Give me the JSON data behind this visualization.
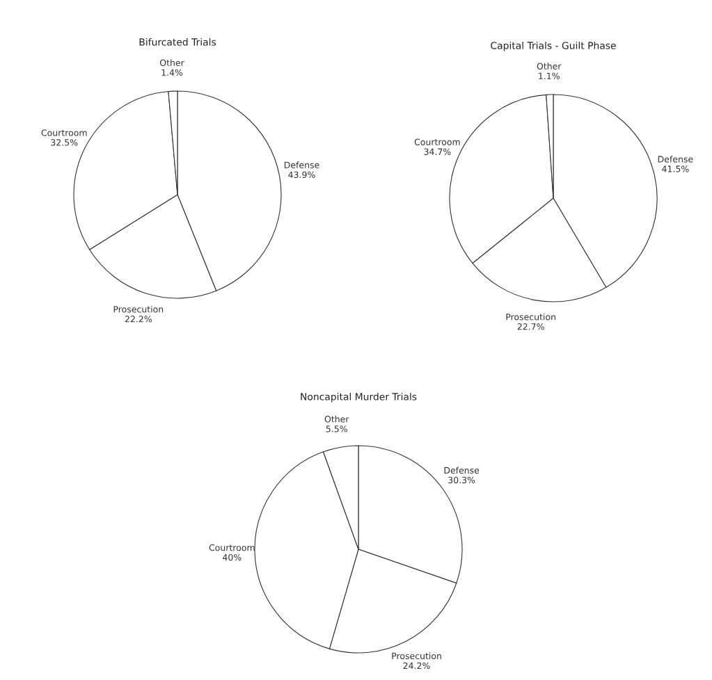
{
  "chart_data": [
    {
      "type": "pie",
      "title": "Bifurcated Trials",
      "categories": [
        "Defense",
        "Prosecution",
        "Courtroom",
        "Other"
      ],
      "values": [
        43.9,
        22.2,
        32.5,
        1.4
      ],
      "value_labels": [
        "43.9%",
        "22.2%",
        "32.5%",
        "1.4%"
      ],
      "colors": [
        "#ffffff",
        "#ffffff",
        "#ffffff",
        "#ffffff"
      ]
    },
    {
      "type": "pie",
      "title": "Capital Trials - Guilt Phase",
      "categories": [
        "Defense",
        "Prosecution",
        "Courtroom",
        "Other"
      ],
      "values": [
        41.5,
        22.7,
        34.7,
        1.1
      ],
      "value_labels": [
        "41.5%",
        "22.7%",
        "34.7%",
        "1.1%"
      ],
      "colors": [
        "#ffffff",
        "#ffffff",
        "#ffffff",
        "#ffffff"
      ]
    },
    {
      "type": "pie",
      "title": "Noncapital Murder Trials",
      "categories": [
        "Defense",
        "Prosecution",
        "Courtroom",
        "Other"
      ],
      "values": [
        30.3,
        24.2,
        40,
        5.5
      ],
      "value_labels": [
        "30.3%",
        "24.2%",
        "40%",
        "5.5%"
      ],
      "colors": [
        "#ffffff",
        "#ffffff",
        "#ffffff",
        "#ffffff"
      ]
    }
  ]
}
